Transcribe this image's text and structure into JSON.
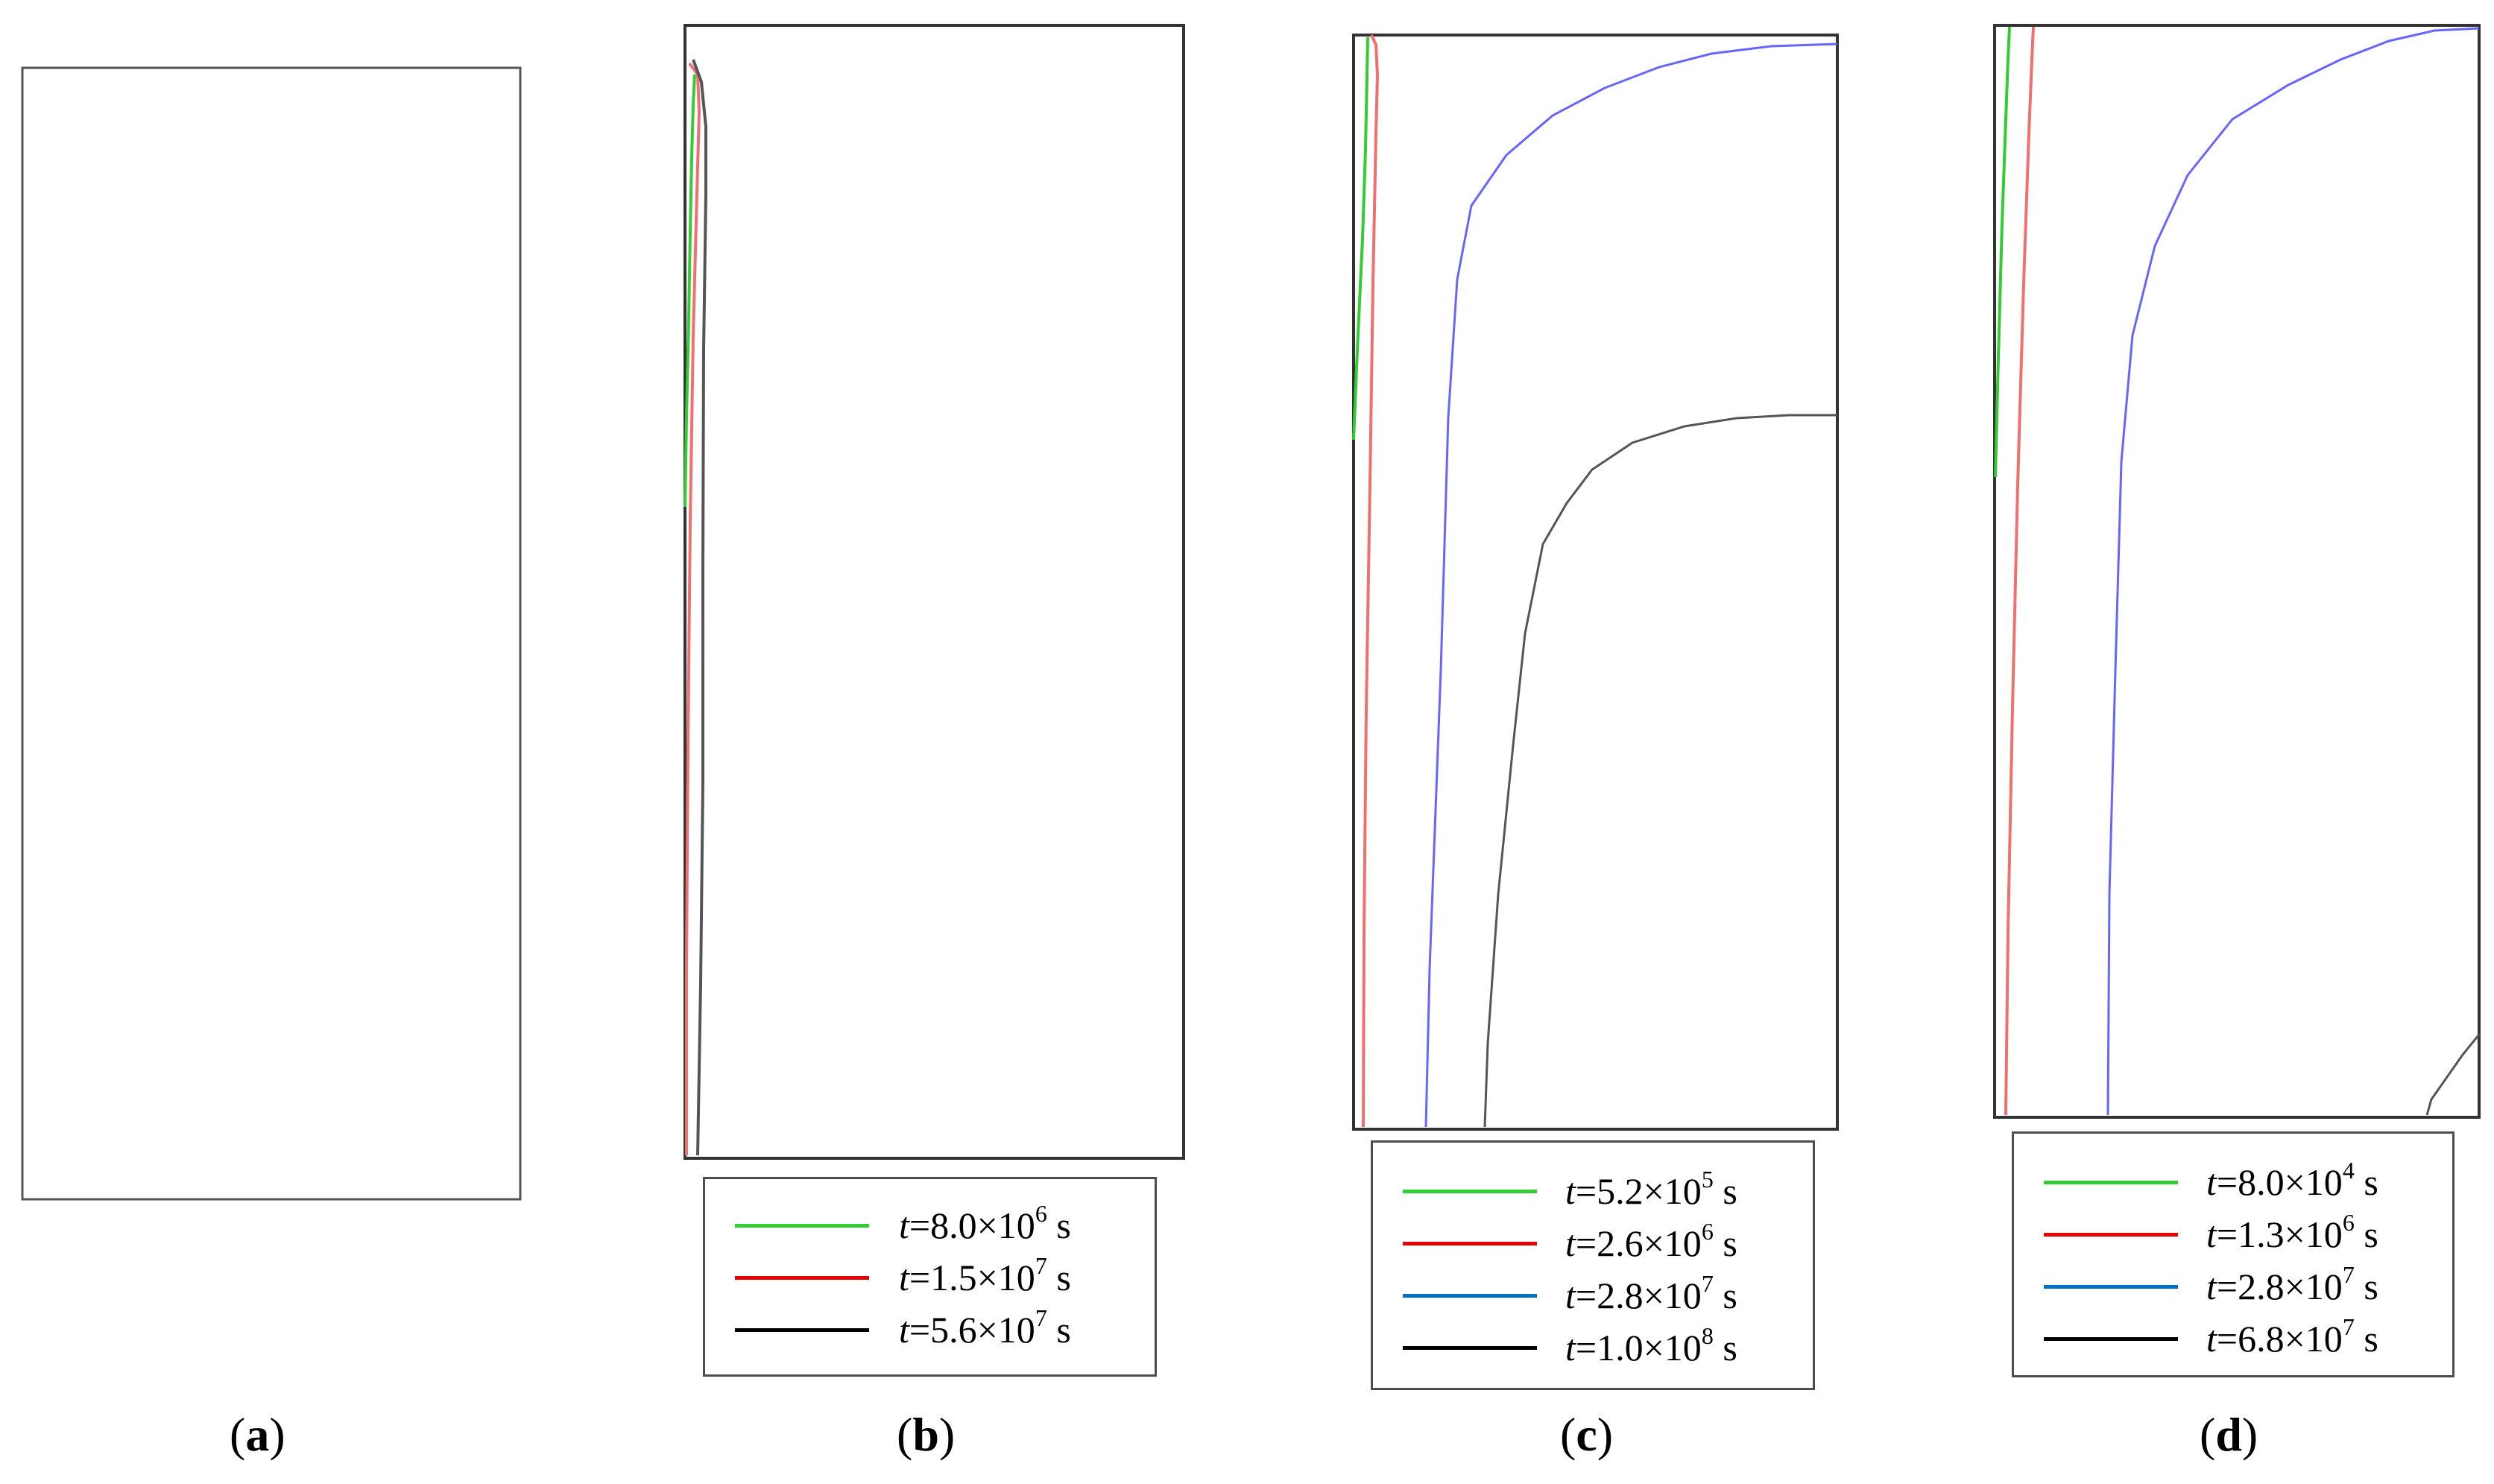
{
  "panels": [
    {
      "id": "a",
      "caption": "a",
      "legend": []
    },
    {
      "id": "b",
      "caption": "b",
      "legend": [
        {
          "var": "t",
          "eq": "=",
          "mantissa": "8.0",
          "times": "×10",
          "exp": "6",
          "unit": "s",
          "color": "#33cc33"
        },
        {
          "var": "t",
          "eq": "=",
          "mantissa": "1.5",
          "times": "×10",
          "exp": "7",
          "unit": "s",
          "color": "#e60000"
        },
        {
          "var": "t",
          "eq": "=",
          "mantissa": "5.6",
          "times": "×10",
          "exp": "7",
          "unit": "s",
          "color": "#000000"
        }
      ]
    },
    {
      "id": "c",
      "caption": "c",
      "legend": [
        {
          "var": "t",
          "eq": "=",
          "mantissa": "5.2",
          "times": "×10",
          "exp": "5",
          "unit": "s",
          "color": "#33cc33"
        },
        {
          "var": "t",
          "eq": "=",
          "mantissa": "2.6",
          "times": "×10",
          "exp": "6",
          "unit": "s",
          "color": "#e60000"
        },
        {
          "var": "t",
          "eq": "=",
          "mantissa": "2.8",
          "times": "×10",
          "exp": "7",
          "unit": "s",
          "color": "#0070c0"
        },
        {
          "var": "t",
          "eq": "=",
          "mantissa": "1.0",
          "times": "×10",
          "exp": "8",
          "unit": "s",
          "color": "#000000"
        }
      ]
    },
    {
      "id": "d",
      "caption": "d",
      "legend": [
        {
          "var": "t",
          "eq": "=",
          "mantissa": "8.0",
          "times": "×10",
          "exp": "4",
          "unit": "s",
          "color": "#33cc33"
        },
        {
          "var": "t",
          "eq": "=",
          "mantissa": "1.3",
          "times": "×10",
          "exp": "6",
          "unit": "s",
          "color": "#e60000"
        },
        {
          "var": "t",
          "eq": "=",
          "mantissa": "2.8",
          "times": "×10",
          "exp": "7",
          "unit": "s",
          "color": "#0070c0"
        },
        {
          "var": "t",
          "eq": "=",
          "mantissa": "6.8",
          "times": "×10",
          "exp": "7",
          "unit": "s",
          "color": "#000000"
        }
      ]
    }
  ],
  "curve_colors": {
    "green": "#33cc33",
    "red": "#f07070",
    "blue": "#6666ff",
    "dark": "#555555"
  }
}
